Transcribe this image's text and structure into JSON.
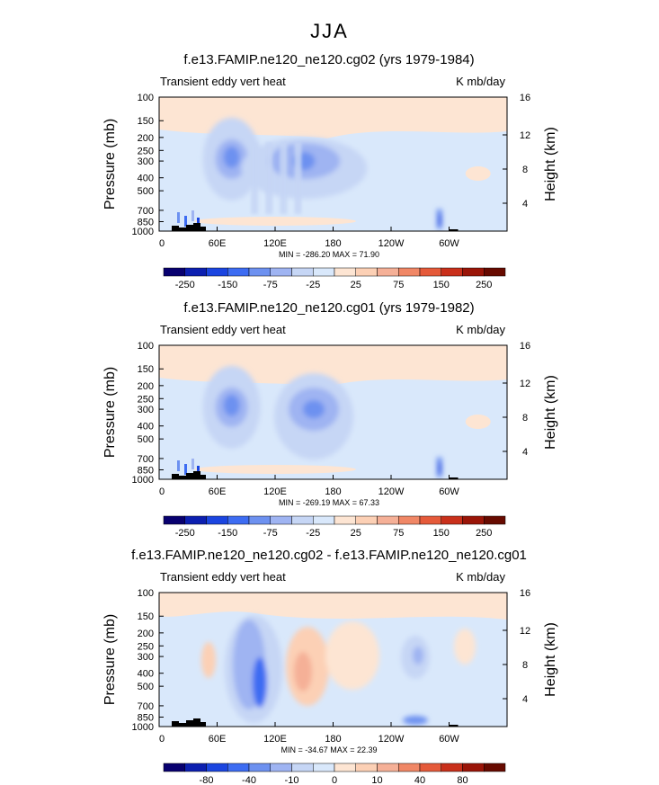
{
  "main_title": "JJA",
  "colors": {
    "levels": [
      "#08006f",
      "#0c1fb0",
      "#1b45e0",
      "#3d6cf2",
      "#6d91f0",
      "#9fb4f2",
      "#c6d6f5",
      "#d9e8fb",
      "#fde5d3",
      "#fcd0b5",
      "#f5b097",
      "#f08766",
      "#e55a3a",
      "#c9301b",
      "#9a1508",
      "#670a00"
    ],
    "terrain": "#000000"
  },
  "chart_data": [
    {
      "type": "contour",
      "title": "f.e13.FAMIP.ne120_ne120.cg02 (yrs 1979-1984)",
      "left_label": "Transient eddy vert heat",
      "right_label": "K mb/day",
      "ylabel": "Pressure (mb)",
      "ylabel_right": "Height (km)",
      "x_ticks": [
        "0",
        "60E",
        "120E",
        "180",
        "120W",
        "60W"
      ],
      "y_ticks": [
        "100",
        "150",
        "200",
        "250",
        "300",
        "400",
        "500",
        "700",
        "850",
        "1000"
      ],
      "y_right_ticks": [
        "16",
        "12",
        "8",
        "4"
      ],
      "min_max": "MIN = -286.20   MAX =  71.90",
      "colorbar_labels": [
        "-250",
        "-150",
        "-75",
        "-25",
        "25",
        "75",
        "150",
        "250"
      ],
      "features": [
        {
          "lon": 75,
          "p": 290,
          "value": -150
        },
        {
          "lon": 150,
          "p": 300,
          "value": -75
        },
        {
          "lon": 290,
          "p": 800,
          "value": -150
        }
      ]
    },
    {
      "type": "contour",
      "title": "f.e13.FAMIP.ne120_ne120.cg01 (yrs 1979-1982)",
      "left_label": "Transient eddy vert heat",
      "right_label": "K mb/day",
      "ylabel": "Pressure (mb)",
      "ylabel_right": "Height (km)",
      "x_ticks": [
        "0",
        "60E",
        "120E",
        "180",
        "120W",
        "60W"
      ],
      "y_ticks": [
        "100",
        "150",
        "200",
        "250",
        "300",
        "400",
        "500",
        "700",
        "850",
        "1000"
      ],
      "y_right_ticks": [
        "16",
        "12",
        "8",
        "4"
      ],
      "min_max": "MIN = -269.19   MAX =  67.33",
      "colorbar_labels": [
        "-250",
        "-150",
        "-75",
        "-25",
        "25",
        "75",
        "150",
        "250"
      ],
      "features": [
        {
          "lon": 75,
          "p": 290,
          "value": -150
        },
        {
          "lon": 160,
          "p": 300,
          "value": -75
        },
        {
          "lon": 290,
          "p": 800,
          "value": -150
        }
      ]
    },
    {
      "type": "contour",
      "title": "f.e13.FAMIP.ne120_ne120.cg02 - f.e13.FAMIP.ne120_ne120.cg01",
      "left_label": "Transient eddy vert heat",
      "right_label": "K mb/day",
      "ylabel": "Pressure (mb)",
      "ylabel_right": "Height (km)",
      "x_ticks": [
        "0",
        "60E",
        "120E",
        "180",
        "120W",
        "60W"
      ],
      "y_ticks": [
        "100",
        "150",
        "200",
        "250",
        "300",
        "400",
        "500",
        "700",
        "850",
        "1000"
      ],
      "y_right_ticks": [
        "16",
        "12",
        "8",
        "4"
      ],
      "min_max": "MIN = -34.67   MAX =  22.39",
      "colorbar_labels": [
        "-80",
        "-40",
        "-10",
        "0",
        "10",
        "40",
        "80"
      ],
      "features": [
        {
          "lon": 90,
          "p": 300,
          "value": -40
        },
        {
          "lon": 120,
          "p": 500,
          "value": -40
        },
        {
          "lon": 165,
          "p": 350,
          "value": 10
        },
        {
          "lon": 265,
          "p": 300,
          "value": -10
        }
      ]
    }
  ]
}
